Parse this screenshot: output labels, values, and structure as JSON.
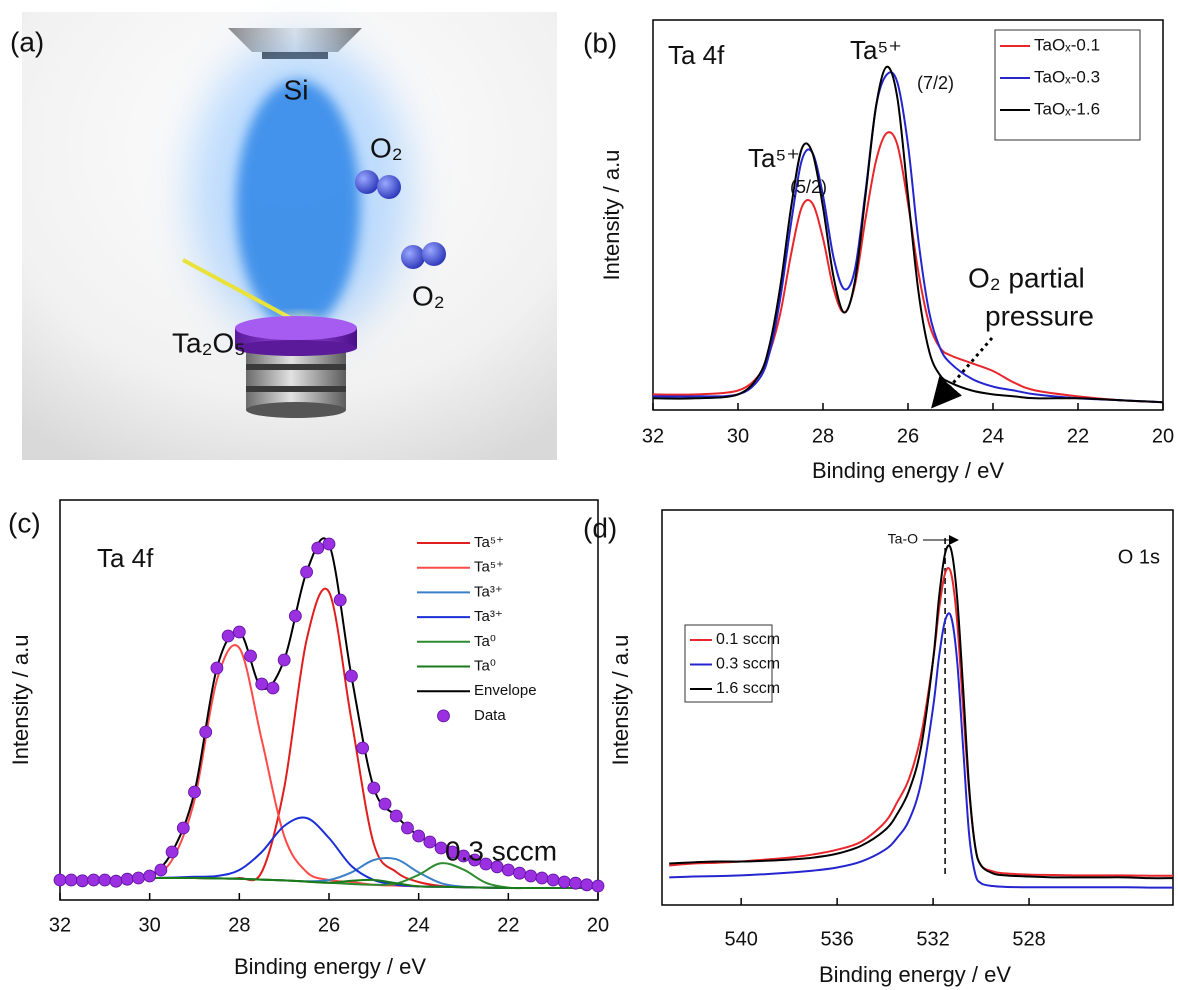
{
  "panel_a": {
    "label": "(a)",
    "target": "Si",
    "gas_1": "O₂",
    "gas_2": "O₂",
    "source": "Ta₂O₅"
  },
  "chart_data": [
    {
      "type": "line",
      "panel_label": "(b)",
      "title": "Ta 4f",
      "x_label": "Binding energy / eV",
      "y_label": "Intensity / a.u",
      "xlim": [
        32,
        20
      ],
      "xticks": [
        32,
        30,
        28,
        26,
        24,
        22,
        20
      ],
      "ylim": [
        0,
        1
      ],
      "legend": "upper right",
      "legend_frame": true,
      "annotations": [
        "Ta⁵⁺",
        "(5/2)",
        "Ta⁵⁺",
        "(7/2)",
        "O₂ partial",
        "pressure"
      ],
      "x": [
        32,
        31,
        30,
        29.5,
        29.25,
        29,
        28.75,
        28.5,
        28.25,
        28,
        27.75,
        27.5,
        27.25,
        27,
        26.75,
        26.5,
        26.25,
        26,
        25.75,
        25.5,
        25.25,
        25,
        24.5,
        24,
        23.5,
        23,
        22,
        21,
        20
      ],
      "series": [
        {
          "name": "TaOₓ-0.1",
          "color": "#e8262b",
          "values": [
            0.04,
            0.04,
            0.05,
            0.09,
            0.15,
            0.25,
            0.4,
            0.52,
            0.53,
            0.44,
            0.31,
            0.25,
            0.32,
            0.49,
            0.64,
            0.71,
            0.68,
            0.53,
            0.35,
            0.22,
            0.16,
            0.14,
            0.12,
            0.1,
            0.07,
            0.05,
            0.035,
            0.025,
            0.02
          ]
        },
        {
          "name": "TaOₓ-0.3",
          "color": "#2525d0",
          "values": [
            0.035,
            0.035,
            0.04,
            0.08,
            0.15,
            0.29,
            0.48,
            0.64,
            0.66,
            0.55,
            0.39,
            0.31,
            0.36,
            0.56,
            0.78,
            0.86,
            0.84,
            0.68,
            0.43,
            0.25,
            0.16,
            0.12,
            0.08,
            0.06,
            0.05,
            0.04,
            0.03,
            0.025,
            0.02
          ]
        },
        {
          "name": "TaOₓ-1.6",
          "color": "#000000",
          "values": [
            0.03,
            0.03,
            0.04,
            0.09,
            0.17,
            0.32,
            0.52,
            0.67,
            0.66,
            0.52,
            0.34,
            0.25,
            0.33,
            0.55,
            0.78,
            0.88,
            0.8,
            0.55,
            0.3,
            0.15,
            0.09,
            0.07,
            0.05,
            0.04,
            0.035,
            0.03,
            0.03,
            0.025,
            0.02
          ]
        }
      ]
    },
    {
      "type": "line",
      "panel_label": "(c)",
      "title": "Ta 4f",
      "x_label": "Binding energy / eV",
      "y_label": "Intensity / a.u",
      "xlim": [
        32,
        20
      ],
      "xticks": [
        32,
        30,
        28,
        26,
        24,
        22,
        20
      ],
      "ylim": [
        0,
        1
      ],
      "legend": "upper right",
      "legend_frame": false,
      "annotations": [
        "0.3 sccm"
      ],
      "x": [
        32,
        31.5,
        31,
        30.5,
        30,
        29.5,
        29,
        28.5,
        28,
        27.5,
        27,
        26.5,
        26,
        25.5,
        25,
        24.5,
        24,
        23.5,
        23,
        22.5,
        22,
        21.5,
        21,
        20.5,
        20
      ],
      "series": [
        {
          "name": "Ta⁵⁺",
          "color": "#e01e1e",
          "values": [
            0.05,
            0.05,
            0.05,
            0.055,
            0.055,
            0.055,
            0.055,
            0.054,
            0.055,
            0.07,
            0.28,
            0.65,
            0.77,
            0.45,
            0.14,
            0.07,
            0.045,
            0.035,
            0.032,
            0.031,
            0.03,
            0.03,
            0.03,
            0.03,
            0.03
          ]
        },
        {
          "name": "Ta⁵⁺",
          "color": "#ff4a4a",
          "values": [
            0.05,
            0.05,
            0.05,
            0.055,
            0.06,
            0.1,
            0.25,
            0.55,
            0.63,
            0.4,
            0.16,
            0.07,
            0.05,
            0.045,
            0.038,
            0.036,
            0.034,
            0.033,
            0.032,
            0.031,
            0.03,
            0.03,
            0.03,
            0.03,
            0.03
          ]
        },
        {
          "name": "Ta³⁺",
          "color": "#3a80c8",
          "values": [
            0.05,
            0.05,
            0.05,
            0.055,
            0.055,
            0.055,
            0.055,
            0.054,
            0.053,
            0.051,
            0.049,
            0.047,
            0.05,
            0.069,
            0.1,
            0.102,
            0.069,
            0.042,
            0.033,
            0.031,
            0.03,
            0.03,
            0.03,
            0.03,
            0.03
          ]
        },
        {
          "name": "Ta³⁺",
          "color": "#1a2fd8",
          "values": [
            0.05,
            0.05,
            0.05,
            0.055,
            0.055,
            0.056,
            0.058,
            0.06,
            0.075,
            0.12,
            0.185,
            0.205,
            0.155,
            0.085,
            0.05,
            0.038,
            0.034,
            0.033,
            0.032,
            0.031,
            0.03,
            0.03,
            0.03,
            0.03,
            0.03
          ]
        },
        {
          "name": "Ta⁰",
          "color": "#2e8b2e",
          "values": [
            0.05,
            0.05,
            0.05,
            0.055,
            0.055,
            0.055,
            0.055,
            0.054,
            0.053,
            0.051,
            0.049,
            0.046,
            0.043,
            0.04,
            0.038,
            0.041,
            0.063,
            0.092,
            0.076,
            0.043,
            0.031,
            0.03,
            0.03,
            0.03,
            0.03
          ]
        },
        {
          "name": "Ta⁰",
          "color": "#1a7a1a",
          "values": [
            0.05,
            0.05,
            0.05,
            0.055,
            0.055,
            0.055,
            0.055,
            0.054,
            0.053,
            0.051,
            0.049,
            0.046,
            0.043,
            0.048,
            0.05,
            0.042,
            0.034,
            0.033,
            0.032,
            0.031,
            0.03,
            0.03,
            0.03,
            0.03,
            0.03
          ]
        },
        {
          "name": "Envelope",
          "color": "#000000",
          "values": [
            0.05,
            0.05,
            0.05,
            0.055,
            0.06,
            0.12,
            0.27,
            0.58,
            0.67,
            0.53,
            0.6,
            0.82,
            0.89,
            0.56,
            0.28,
            0.21,
            0.16,
            0.13,
            0.11,
            0.09,
            0.075,
            0.06,
            0.05,
            0.042,
            0.035
          ]
        },
        {
          "name": "Data",
          "color": "#9b30e0",
          "marker": "circle",
          "x": [
            32,
            31.75,
            31.5,
            31.25,
            31,
            30.75,
            30.5,
            30.25,
            30,
            29.75,
            29.5,
            29.25,
            29,
            28.75,
            28.5,
            28.25,
            28,
            27.75,
            27.5,
            27.25,
            27,
            26.75,
            26.5,
            26.25,
            26,
            25.75,
            25.5,
            25.25,
            25,
            24.75,
            24.5,
            24.25,
            24,
            23.75,
            23.5,
            23.25,
            23,
            22.75,
            22.5,
            22.25,
            22,
            21.75,
            21.5,
            21.25,
            21,
            20.75,
            20.5,
            20.25,
            20
          ],
          "values": [
            0.05,
            0.05,
            0.048,
            0.05,
            0.05,
            0.047,
            0.052,
            0.055,
            0.06,
            0.075,
            0.12,
            0.18,
            0.27,
            0.42,
            0.58,
            0.66,
            0.67,
            0.61,
            0.54,
            0.53,
            0.6,
            0.71,
            0.82,
            0.88,
            0.89,
            0.75,
            0.56,
            0.38,
            0.28,
            0.24,
            0.21,
            0.18,
            0.16,
            0.145,
            0.13,
            0.12,
            0.11,
            0.1,
            0.09,
            0.083,
            0.075,
            0.067,
            0.06,
            0.055,
            0.05,
            0.045,
            0.042,
            0.038,
            0.035
          ]
        }
      ]
    },
    {
      "type": "line",
      "panel_label": "(d)",
      "title": "O 1s",
      "x_label": "Binding energy / eV",
      "y_label": "Intensity / a.u",
      "xlim": [
        543.3,
        522
      ],
      "xticks": [
        540,
        536,
        532,
        528
      ],
      "ylim": [
        0,
        1
      ],
      "legend": "center left",
      "legend_frame": true,
      "annotations": [
        "Ta-O"
      ],
      "vline": 531.5,
      "x": [
        543,
        542,
        541,
        540,
        539,
        538,
        537,
        536,
        535,
        534,
        533.5,
        533,
        532.5,
        532,
        531.75,
        531.5,
        531.25,
        531,
        530.75,
        530.5,
        530.25,
        530,
        529.5,
        529,
        528,
        527,
        526,
        525,
        524,
        523,
        522
      ],
      "series": [
        {
          "name": "0.1 sccm",
          "color": "#e8262b",
          "values": [
            0.1,
            0.105,
            0.107,
            0.11,
            0.115,
            0.12,
            0.128,
            0.14,
            0.16,
            0.21,
            0.26,
            0.32,
            0.43,
            0.62,
            0.75,
            0.84,
            0.84,
            0.72,
            0.5,
            0.29,
            0.15,
            0.1,
            0.085,
            0.08,
            0.077,
            0.076,
            0.075,
            0.075,
            0.075,
            0.074,
            0.074
          ]
        },
        {
          "name": "0.3 sccm",
          "color": "#2525d0",
          "values": [
            0.07,
            0.072,
            0.073,
            0.075,
            0.078,
            0.082,
            0.087,
            0.095,
            0.11,
            0.14,
            0.17,
            0.215,
            0.31,
            0.5,
            0.63,
            0.72,
            0.73,
            0.62,
            0.4,
            0.18,
            0.08,
            0.055,
            0.048,
            0.046,
            0.045,
            0.045,
            0.045,
            0.045,
            0.045,
            0.044,
            0.044
          ]
        },
        {
          "name": "1.6 sccm",
          "color": "#000000",
          "values": [
            0.105,
            0.108,
            0.11,
            0.11,
            0.112,
            0.115,
            0.12,
            0.13,
            0.15,
            0.19,
            0.23,
            0.29,
            0.4,
            0.62,
            0.78,
            0.89,
            0.9,
            0.78,
            0.55,
            0.3,
            0.15,
            0.1,
            0.08,
            0.075,
            0.072,
            0.07,
            0.07,
            0.07,
            0.07,
            0.068,
            0.068
          ]
        }
      ]
    }
  ]
}
